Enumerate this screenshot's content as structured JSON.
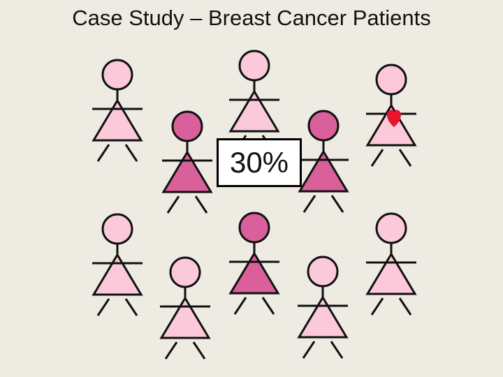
{
  "title": "Case Study – Breast Cancer Patients",
  "callout": "30%",
  "colors": {
    "background": "#EEEBE2",
    "light_figure": "#FCC9DA",
    "dark_figure": "#D9609A",
    "heart": "#E8142C"
  },
  "figures": [
    {
      "tone": "light"
    },
    {
      "tone": "light"
    },
    {
      "tone": "light",
      "heart": true
    },
    {
      "tone": "dark"
    },
    {
      "tone": "dark"
    },
    {
      "tone": "light"
    },
    {
      "tone": "light"
    },
    {
      "tone": "dark"
    },
    {
      "tone": "light"
    },
    {
      "tone": "light"
    }
  ]
}
